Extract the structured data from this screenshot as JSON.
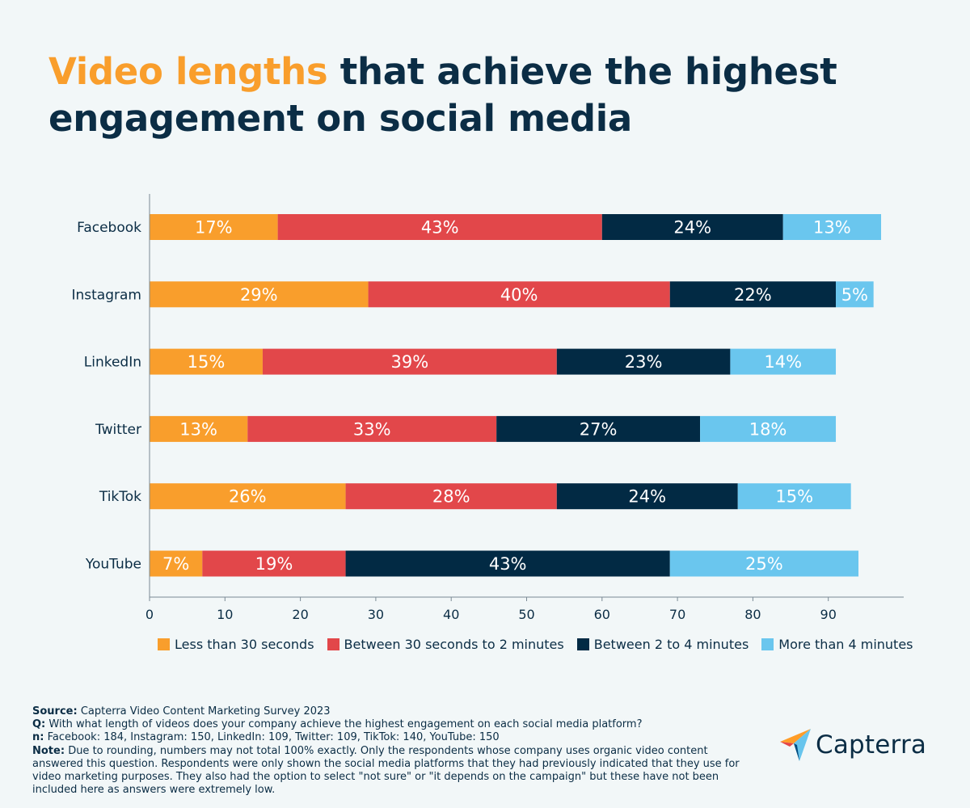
{
  "title": {
    "highlight": "Video lengths",
    "rest": "that achieve the highest engagement on social media"
  },
  "colors": {
    "background": "#f2f7f8",
    "title_dark": "#0b2d45",
    "title_highlight": "#f99e2c"
  },
  "chart_data": {
    "type": "bar",
    "orientation": "horizontal",
    "stacked": true,
    "categories": [
      "Facebook",
      "Instagram",
      "LinkedIn",
      "Twitter",
      "TikTok",
      "YouTube"
    ],
    "series": [
      {
        "name": "Less than 30 seconds",
        "color": "#f99e2c",
        "values": [
          17,
          29,
          15,
          13,
          26,
          7
        ]
      },
      {
        "name": "Between 30 seconds to 2 minutes",
        "color": "#e2474a",
        "values": [
          43,
          40,
          39,
          33,
          28,
          19
        ]
      },
      {
        "name": "Between 2 to 4 minutes",
        "color": "#022a44",
        "values": [
          24,
          22,
          23,
          27,
          24,
          43
        ]
      },
      {
        "name": "More than 4 minutes",
        "color": "#6ac6ee",
        "values": [
          13,
          5,
          14,
          18,
          15,
          25
        ]
      }
    ],
    "value_suffix": "%",
    "xlim": [
      0,
      100
    ],
    "xticks": [
      "0",
      "10",
      "20",
      "30",
      "40",
      "50",
      "60",
      "70",
      "80",
      "90"
    ],
    "legend_position": "bottom",
    "xlabel": "",
    "ylabel": ""
  },
  "notes": {
    "source_label": "Source:",
    "source_text": "Capterra Video Content Marketing Survey 2023",
    "q_label": "Q:",
    "q_text": "With what length of videos does your company achieve the highest engagement on each social media platform?",
    "n_label": "n:",
    "n_text": "Facebook: 184, Instagram: 150, LinkedIn: 109, Twitter: 109, TikTok: 140, YouTube: 150",
    "note_label": "Note:",
    "note_text": "Due to rounding, numbers may not total 100% exactly. Only the respondents whose company uses organic video content answered this question. Respondents were only shown the social media platforms that they had previously indicated that they use for video marketing purposes. They also had the option to select \"not sure\" or \"it depends on the campaign\" but these have not been included here as answers were extremely low."
  },
  "logo": {
    "text": "Capterra",
    "icon": "capterra-arrow-icon"
  }
}
